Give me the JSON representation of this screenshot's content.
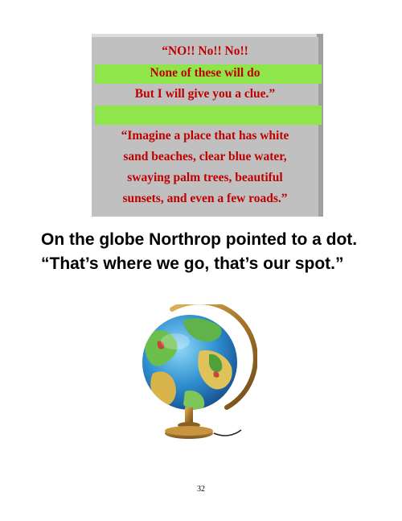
{
  "dialogue": {
    "line1": "“NO!! No!! No!!",
    "line2": "None of these will do",
    "line3": "But I will give you a clue.”",
    "line4": "“Imagine a place that has white",
    "line5": "sand beaches, clear blue water,",
    "line6": "swaying palm trees, beautiful",
    "line7": "sunsets, and even a few roads.”"
  },
  "caption": {
    "line1": "On the globe Northrop pointed to a dot.",
    "line2": "“That’s where we go, that’s our spot.”"
  },
  "page_number": "32",
  "colors": {
    "box_face": "#c0c0c0",
    "box_top": "#dcdcdc",
    "box_side": "#a0a0a0",
    "highlight_band": "#8fe64a",
    "dialogue_text": "#c00000"
  }
}
